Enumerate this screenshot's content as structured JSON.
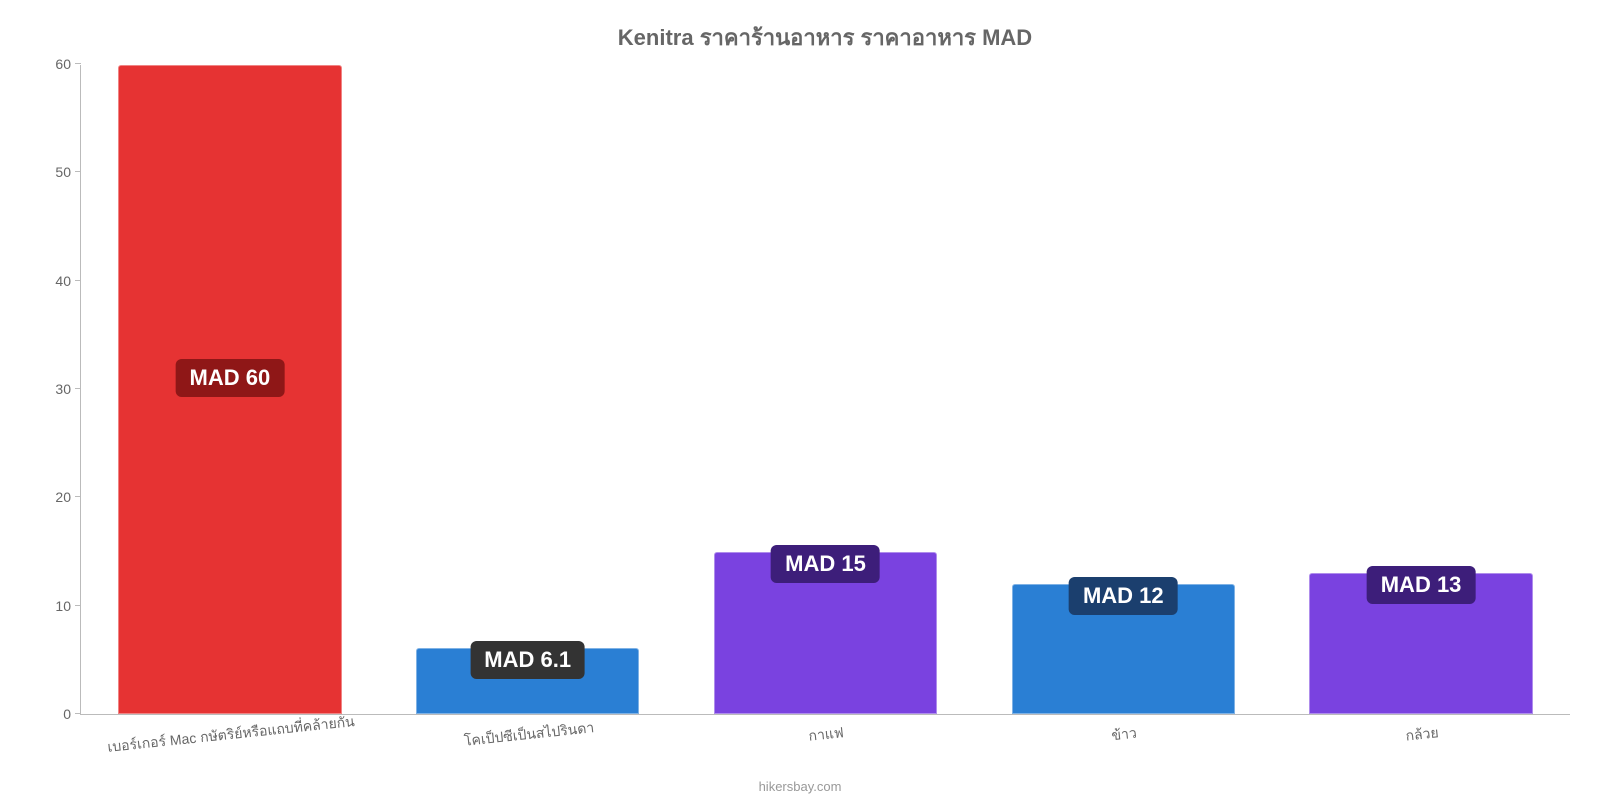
{
  "chart": {
    "type": "bar",
    "title": "Kenitra ราคาร้านอาหาร ราคาอาหาร MAD",
    "title_color": "#666666",
    "title_fontsize": 22,
    "background_color": "#ffffff",
    "axis_color": "#bbbbbb",
    "tick_label_color": "#666666",
    "tick_fontsize": 14,
    "bar_label_fontsize": 22,
    "bar_width_pct": 75,
    "border_radius": 3,
    "ylim": [
      0,
      60
    ],
    "ytick_step": 10,
    "yticks": [
      0,
      10,
      20,
      30,
      40,
      50,
      60
    ],
    "categories": [
      "เบอร์เกอร์ Mac กษัตริย์หรือแถบที่คล้ายกัน",
      "โคเป็ปซีเป็นสไปรินดา",
      "กาแฟ",
      "ข้าว",
      "กล้วย"
    ],
    "values": [
      60,
      6.1,
      15,
      12,
      13
    ],
    "value_labels": [
      "MAD 60",
      "MAD 6.1",
      "MAD 15",
      "MAD 12",
      "MAD 13"
    ],
    "bar_colors": [
      "#e63333",
      "#2a7fd4",
      "#7a42e0",
      "#2a7fd4",
      "#7a42e0"
    ],
    "label_bg_colors": [
      "#8f1717",
      "#333333",
      "#3d1e7a",
      "#1b3f6e",
      "#3d1e7a"
    ],
    "x_label_rotation_deg": -6,
    "attribution": "hikersbay.com",
    "attribution_color": "#999999"
  }
}
